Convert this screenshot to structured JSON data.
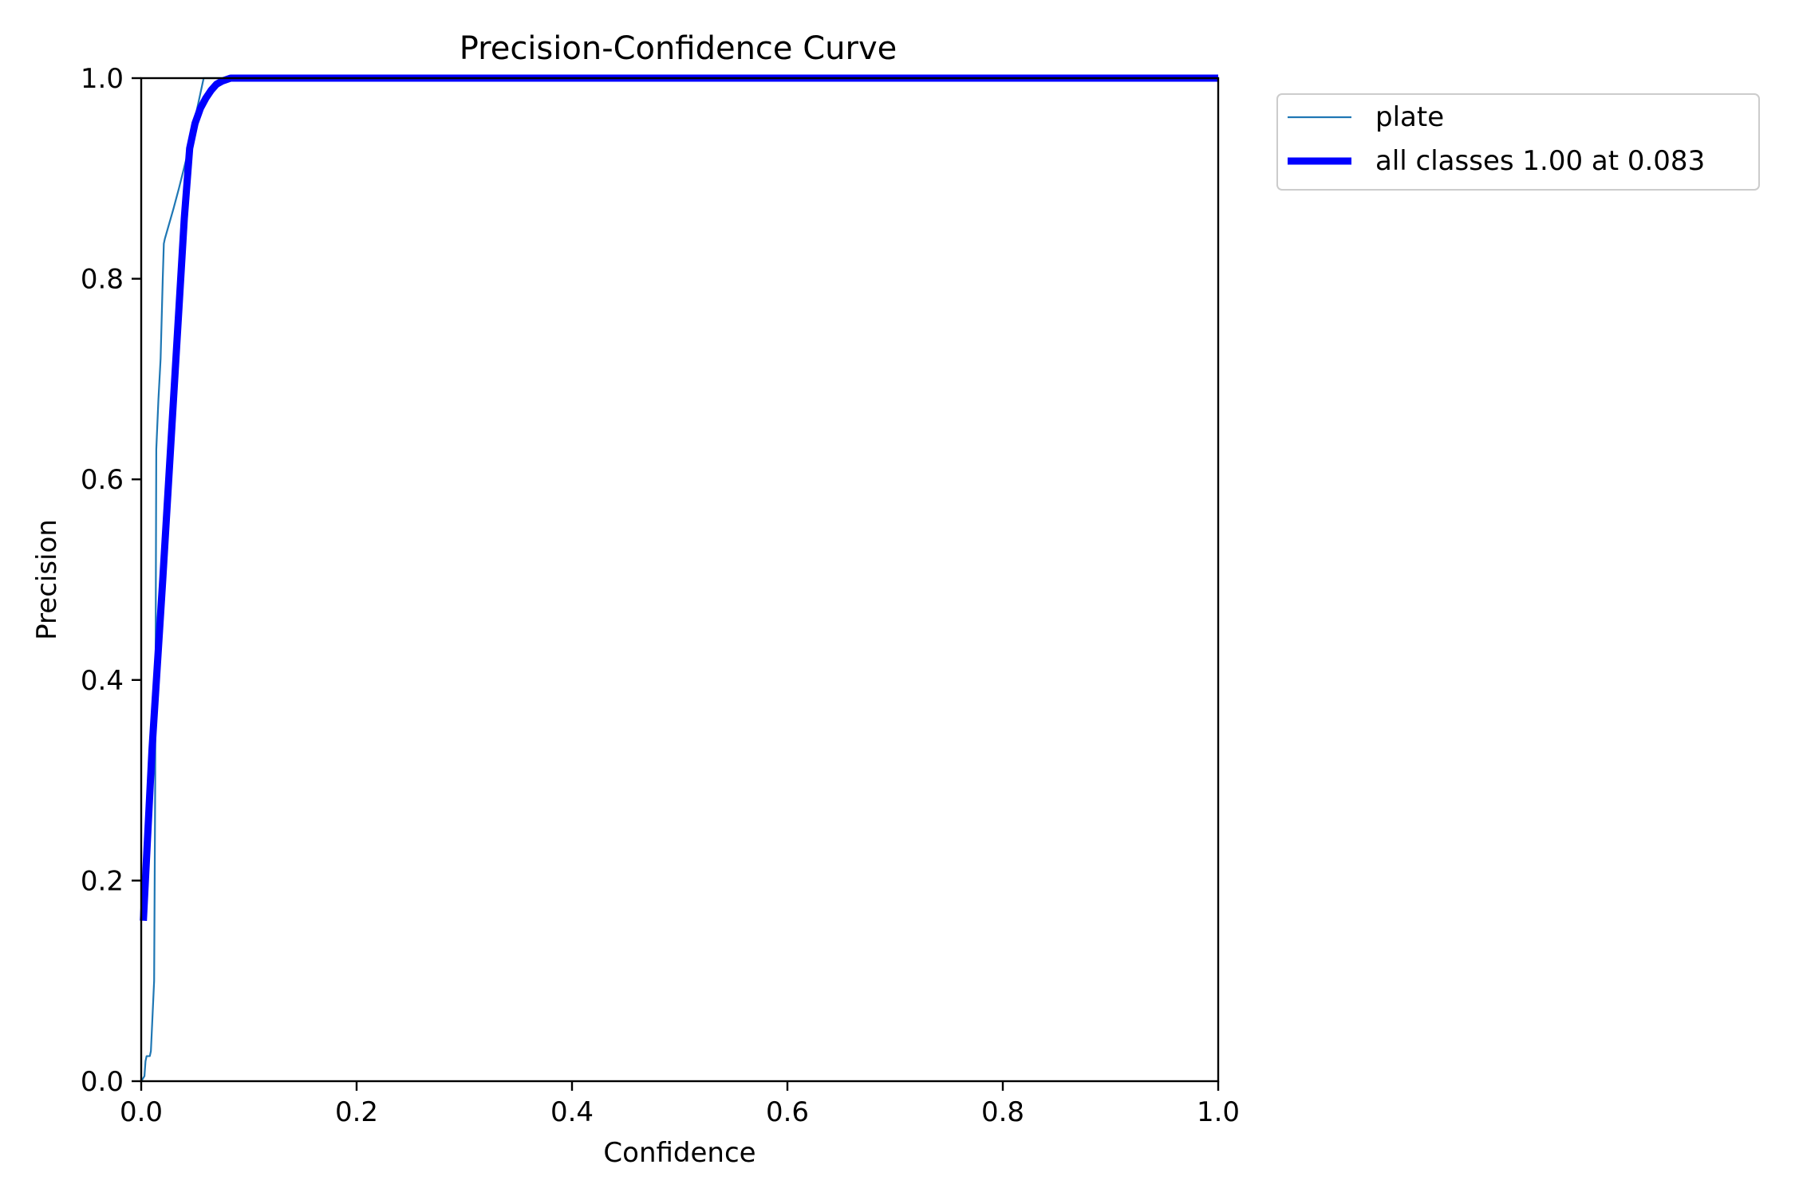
{
  "chart_data": {
    "type": "line",
    "title": "Precision-Confidence Curve",
    "xlabel": "Confidence",
    "ylabel": "Precision",
    "xlim": [
      0.0,
      1.0
    ],
    "ylim": [
      0.0,
      1.0
    ],
    "xticks": [
      "0.0",
      "0.2",
      "0.4",
      "0.6",
      "0.8",
      "1.0"
    ],
    "yticks": [
      "0.0",
      "0.2",
      "0.4",
      "0.6",
      "0.8",
      "1.0"
    ],
    "grid": false,
    "legend_position": "outside-top-right",
    "series": [
      {
        "name": "plate",
        "color": "#1f77b4",
        "style": "thin",
        "x": [
          0.0,
          0.003,
          0.004,
          0.005,
          0.008,
          0.009,
          0.012,
          0.013,
          0.014,
          0.016,
          0.017,
          0.018,
          0.02,
          0.021,
          0.022,
          0.03,
          0.035,
          0.042,
          0.05,
          0.058,
          0.07,
          0.1,
          0.2,
          0.4,
          0.6,
          0.8,
          1.0
        ],
        "y": [
          0.0,
          0.005,
          0.02,
          0.025,
          0.025,
          0.03,
          0.1,
          0.3,
          0.63,
          0.68,
          0.7,
          0.72,
          0.8,
          0.835,
          0.84,
          0.87,
          0.89,
          0.92,
          0.96,
          1.0,
          1.0,
          1.0,
          1.0,
          1.0,
          1.0,
          1.0,
          1.0
        ]
      },
      {
        "name": "all classes 1.00 at 0.083",
        "color": "#0000ff",
        "style": "thick",
        "x": [
          0.002,
          0.01,
          0.02,
          0.03,
          0.04,
          0.045,
          0.05,
          0.055,
          0.06,
          0.065,
          0.07,
          0.075,
          0.083,
          0.1,
          0.2,
          0.4,
          0.6,
          0.8,
          1.0
        ],
        "y": [
          0.16,
          0.33,
          0.5,
          0.68,
          0.86,
          0.93,
          0.955,
          0.97,
          0.98,
          0.988,
          0.994,
          0.997,
          1.0,
          1.0,
          1.0,
          1.0,
          1.0,
          1.0,
          1.0
        ]
      }
    ]
  }
}
